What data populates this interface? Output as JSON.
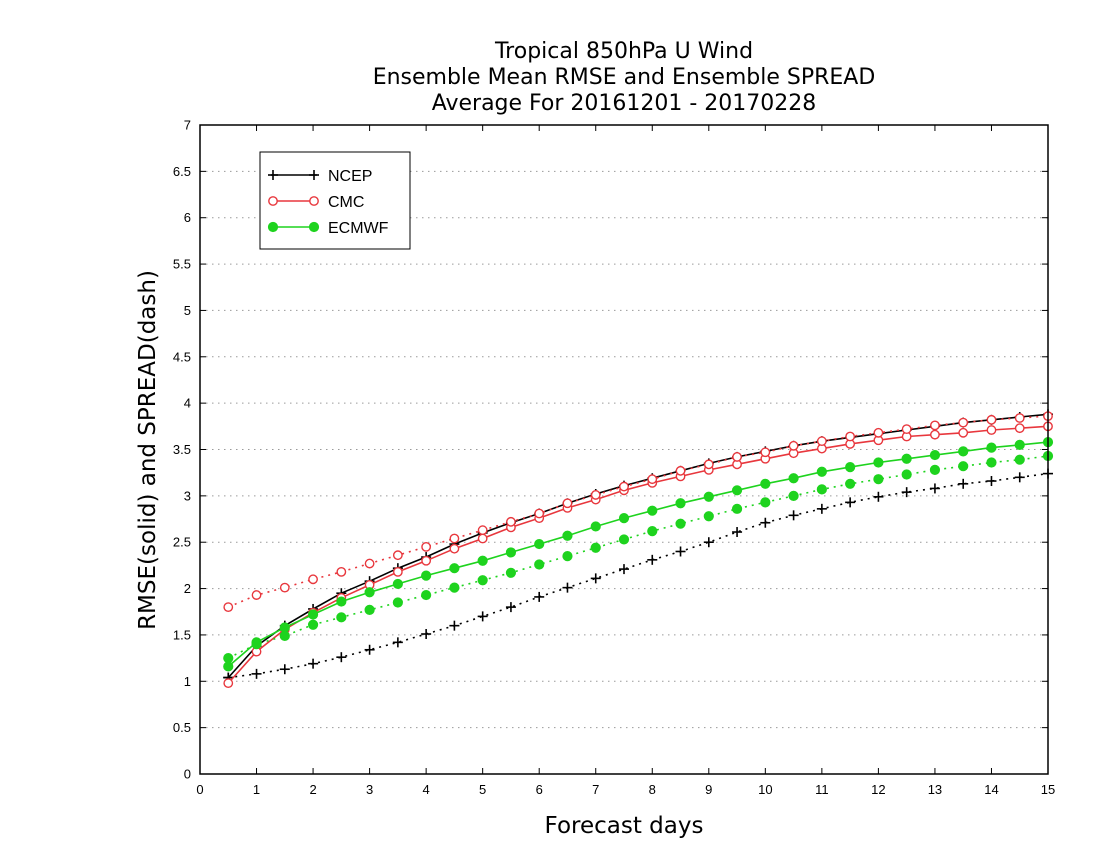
{
  "chart_data": {
    "type": "line",
    "title_lines": [
      "Tropical 850hPa U Wind",
      "Ensemble Mean RMSE and Ensemble SPREAD",
      "Average For 20161201 - 20170228"
    ],
    "xlabel": "Forecast days",
    "ylabel": "RMSE(solid) and SPREAD(dash)",
    "xlim": [
      0,
      15
    ],
    "ylim": [
      0,
      7
    ],
    "x_ticks": [
      "0",
      "1",
      "2",
      "3",
      "4",
      "5",
      "6",
      "7",
      "8",
      "9",
      "10",
      "11",
      "12",
      "13",
      "14",
      "15"
    ],
    "y_ticks": [
      "0",
      "0.5",
      "1",
      "1.5",
      "2",
      "2.5",
      "3",
      "3.5",
      "4",
      "4.5",
      "5",
      "5.5",
      "6",
      "6.5",
      "7"
    ],
    "grid": "horizontal dotted",
    "legend_position": "top-left",
    "x": [
      0.5,
      1,
      1.5,
      2,
      2.5,
      3,
      3.5,
      4,
      4.5,
      5,
      5.5,
      6,
      6.5,
      7,
      7.5,
      8,
      8.5,
      9,
      9.5,
      10,
      10.5,
      11,
      11.5,
      12,
      12.5,
      13,
      13.5,
      14,
      14.5,
      15
    ],
    "series": [
      {
        "name": "NCEP",
        "color": "#000000",
        "marker": "plus",
        "rmse": [
          1.04,
          1.38,
          1.6,
          1.78,
          1.95,
          2.08,
          2.22,
          2.34,
          2.48,
          2.6,
          2.71,
          2.81,
          2.92,
          3.02,
          3.11,
          3.19,
          3.27,
          3.35,
          3.42,
          3.48,
          3.54,
          3.59,
          3.63,
          3.67,
          3.71,
          3.75,
          3.79,
          3.82,
          3.85,
          3.88
        ],
        "spread": [
          1.04,
          1.08,
          1.13,
          1.19,
          1.26,
          1.34,
          1.42,
          1.51,
          1.6,
          1.7,
          1.8,
          1.91,
          2.01,
          2.11,
          2.21,
          2.31,
          2.4,
          2.5,
          2.61,
          2.71,
          2.79,
          2.86,
          2.93,
          2.99,
          3.04,
          3.08,
          3.13,
          3.16,
          3.2,
          3.24
        ]
      },
      {
        "name": "CMC",
        "color": "#e8373d",
        "marker": "open-circle",
        "rmse": [
          0.98,
          1.32,
          1.56,
          1.74,
          1.9,
          2.04,
          2.18,
          2.3,
          2.43,
          2.54,
          2.66,
          2.76,
          2.87,
          2.96,
          3.06,
          3.14,
          3.21,
          3.28,
          3.34,
          3.4,
          3.46,
          3.51,
          3.56,
          3.6,
          3.64,
          3.66,
          3.68,
          3.71,
          3.73,
          3.75
        ],
        "spread": [
          1.8,
          1.93,
          2.01,
          2.1,
          2.18,
          2.27,
          2.36,
          2.45,
          2.54,
          2.63,
          2.72,
          2.81,
          2.92,
          3.01,
          3.1,
          3.18,
          3.27,
          3.34,
          3.42,
          3.47,
          3.54,
          3.59,
          3.64,
          3.68,
          3.72,
          3.76,
          3.79,
          3.82,
          3.84,
          3.86
        ]
      },
      {
        "name": "ECMWF",
        "color": "#1ed31e",
        "marker": "filled-circle",
        "rmse": [
          1.16,
          1.42,
          1.58,
          1.72,
          1.86,
          1.96,
          2.05,
          2.14,
          2.22,
          2.3,
          2.39,
          2.48,
          2.57,
          2.67,
          2.76,
          2.84,
          2.92,
          2.99,
          3.06,
          3.13,
          3.19,
          3.26,
          3.31,
          3.36,
          3.4,
          3.44,
          3.48,
          3.52,
          3.55,
          3.58
        ],
        "spread": [
          1.25,
          1.4,
          1.49,
          1.61,
          1.69,
          1.77,
          1.85,
          1.93,
          2.01,
          2.09,
          2.17,
          2.26,
          2.35,
          2.44,
          2.53,
          2.62,
          2.7,
          2.78,
          2.86,
          2.93,
          3.0,
          3.07,
          3.13,
          3.18,
          3.23,
          3.28,
          3.32,
          3.36,
          3.39,
          3.43
        ]
      }
    ]
  }
}
